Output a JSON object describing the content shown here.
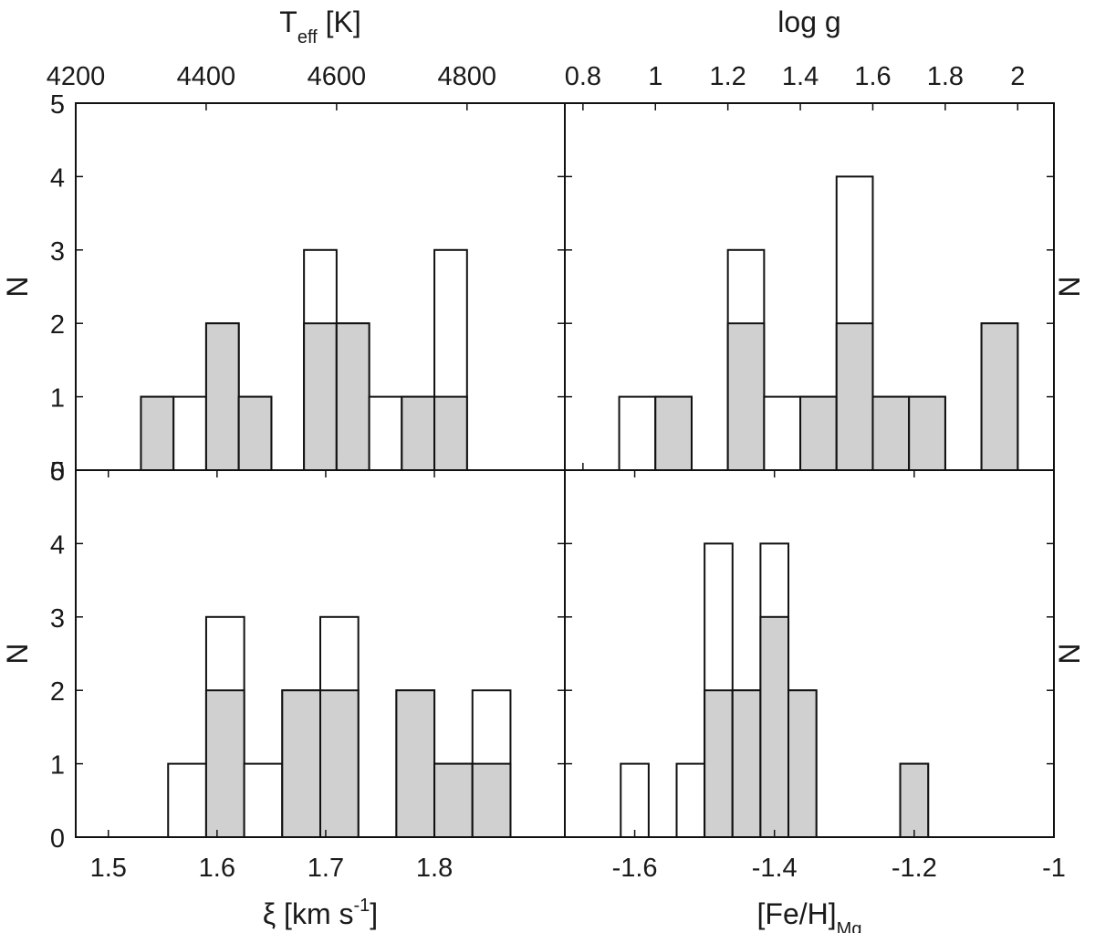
{
  "chart_data": [
    {
      "panel": "top-left",
      "type": "histogram",
      "xlabel": "T_eff [K]",
      "xlabel_main": "T",
      "xlabel_sub": "eff",
      "xlabel_tail": " [K]",
      "ylabel": "N",
      "xlim": [
        4200,
        4950
      ],
      "ylim": [
        0,
        5
      ],
      "xticks": [
        4200,
        4400,
        4600,
        4800
      ],
      "yticks": [
        0,
        1,
        2,
        3,
        4,
        5
      ],
      "bin_width": 50,
      "bins": [
        {
          "x0": 4300,
          "total": 1,
          "subset": 1
        },
        {
          "x0": 4350,
          "total": 1,
          "subset": 0
        },
        {
          "x0": 4400,
          "total": 2,
          "subset": 2
        },
        {
          "x0": 4450,
          "total": 1,
          "subset": 1
        },
        {
          "x0": 4550,
          "total": 3,
          "subset": 2
        },
        {
          "x0": 4600,
          "total": 2,
          "subset": 2
        },
        {
          "x0": 4650,
          "total": 1,
          "subset": 0
        },
        {
          "x0": 4700,
          "total": 1,
          "subset": 1
        },
        {
          "x0": 4750,
          "total": 3,
          "subset": 1
        }
      ]
    },
    {
      "panel": "top-right",
      "type": "histogram",
      "xlabel": "log g",
      "xlabel_main": "log g",
      "ylabel": "N",
      "xlim": [
        0.75,
        2.1
      ],
      "ylim": [
        0,
        5
      ],
      "xticks": [
        0.8,
        1,
        1.2,
        1.4,
        1.6,
        1.8,
        2
      ],
      "yticks": [
        0,
        1,
        2,
        3,
        4,
        5
      ],
      "bin_width": 0.1,
      "bins": [
        {
          "x0": 0.9,
          "total": 1,
          "subset": 0
        },
        {
          "x0": 1.0,
          "total": 1,
          "subset": 1
        },
        {
          "x0": 1.2,
          "total": 3,
          "subset": 2
        },
        {
          "x0": 1.3,
          "total": 1,
          "subset": 0
        },
        {
          "x0": 1.4,
          "total": 1,
          "subset": 1
        },
        {
          "x0": 1.5,
          "total": 4,
          "subset": 2
        },
        {
          "x0": 1.6,
          "total": 1,
          "subset": 1
        },
        {
          "x0": 1.7,
          "total": 1,
          "subset": 1
        },
        {
          "x0": 1.9,
          "total": 2,
          "subset": 2
        }
      ]
    },
    {
      "panel": "bottom-left",
      "type": "histogram",
      "xlabel": "ξ [km s^-1]",
      "xlabel_main": "ξ [km s",
      "xlabel_sup": "-1",
      "xlabel_tail": "]",
      "ylabel": "N",
      "xlim": [
        1.47,
        1.92
      ],
      "ylim": [
        0,
        5
      ],
      "xticks": [
        1.5,
        1.6,
        1.7,
        1.8
      ],
      "yticks": [
        0,
        1,
        2,
        3,
        4,
        5
      ],
      "bin_width": 0.035,
      "bins": [
        {
          "x0": 1.555,
          "total": 1,
          "subset": 0
        },
        {
          "x0": 1.59,
          "total": 3,
          "subset": 2
        },
        {
          "x0": 1.625,
          "total": 1,
          "subset": 0
        },
        {
          "x0": 1.66,
          "total": 2,
          "subset": 2
        },
        {
          "x0": 1.695,
          "total": 3,
          "subset": 2
        },
        {
          "x0": 1.765,
          "total": 2,
          "subset": 2
        },
        {
          "x0": 1.8,
          "total": 1,
          "subset": 1
        },
        {
          "x0": 1.835,
          "total": 2,
          "subset": 1
        }
      ]
    },
    {
      "panel": "bottom-right",
      "type": "histogram",
      "xlabel": "[Fe/H]_Mg",
      "xlabel_main": "[Fe/H]",
      "xlabel_sub": "Mg",
      "ylabel": "N",
      "xlim": [
        -1.7,
        -1.0
      ],
      "ylim": [
        0,
        5
      ],
      "xticks": [
        -1.6,
        -1.4,
        -1.2,
        -1
      ],
      "yticks": [
        0,
        1,
        2,
        3,
        4,
        5
      ],
      "bin_width": 0.04,
      "bins": [
        {
          "x0": -1.62,
          "total": 1,
          "subset": 0
        },
        {
          "x0": -1.54,
          "total": 1,
          "subset": 0
        },
        {
          "x0": -1.5,
          "total": 4,
          "subset": 2
        },
        {
          "x0": -1.46,
          "total": 2,
          "subset": 2
        },
        {
          "x0": -1.42,
          "total": 4,
          "subset": 3
        },
        {
          "x0": -1.38,
          "total": 2,
          "subset": 2
        },
        {
          "x0": -1.22,
          "total": 1,
          "subset": 1
        }
      ]
    }
  ],
  "colors": {
    "subset_fill": "#d0d0d0",
    "total_fill": "#ffffff",
    "stroke": "#111111"
  }
}
